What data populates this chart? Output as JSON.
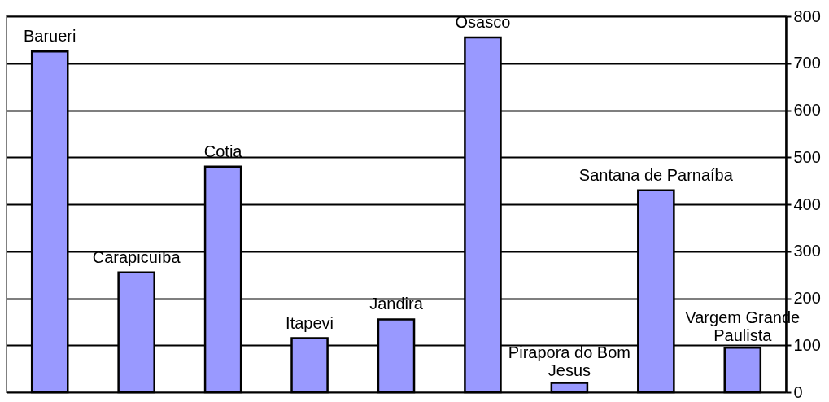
{
  "chart_data": {
    "type": "bar",
    "categories": [
      "Barueri",
      "Carapicuíba",
      "Cotia",
      "Itapevi",
      "Jandira",
      "Osasco",
      "Pirapora do Bom Jesus",
      "Santana de Parnaíba",
      "Vargem Grande Paulista"
    ],
    "values": [
      725,
      255,
      480,
      115,
      155,
      755,
      20,
      430,
      95
    ],
    "color": "#9999ff",
    "ylim": [
      0,
      800
    ],
    "yticks": [
      0,
      100,
      200,
      300,
      400,
      500,
      600,
      700,
      800
    ],
    "grid": "y",
    "tick_labels": "y"
  }
}
